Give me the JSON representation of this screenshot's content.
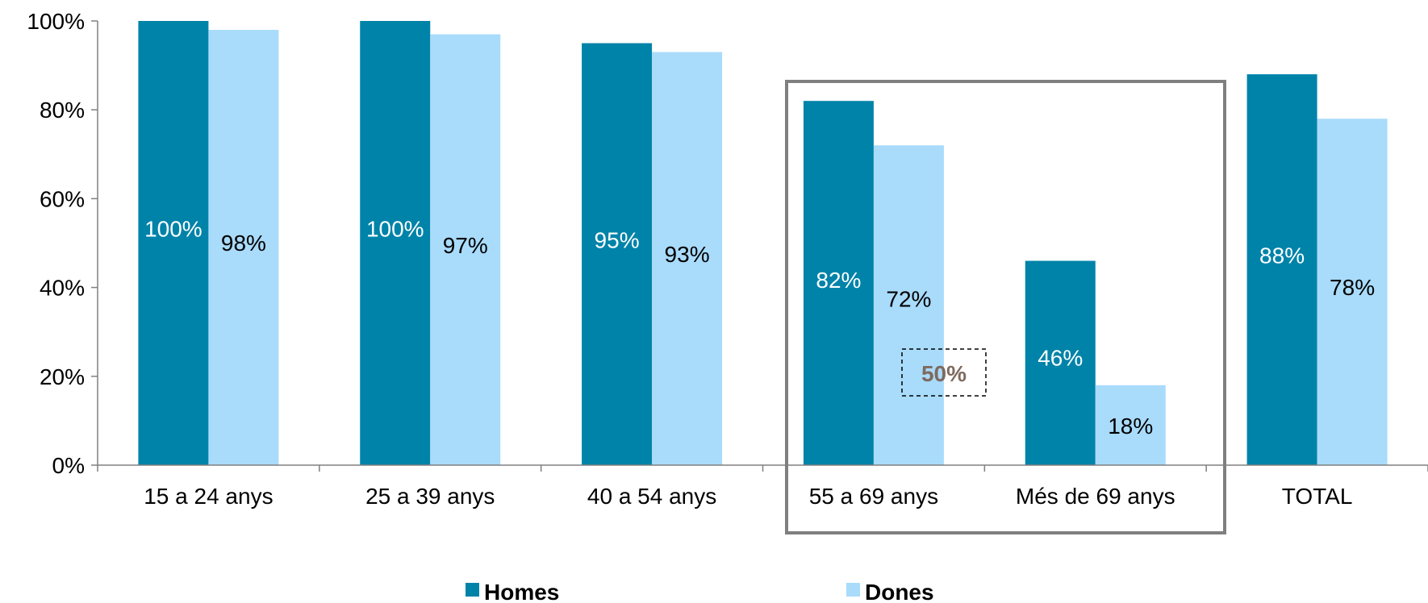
{
  "chart_data": {
    "type": "bar",
    "categories": [
      "15 a 24 anys",
      "25 a 39 anys",
      "40 a 54 anys",
      "55 a 69 anys",
      "Més de 69 anys",
      "TOTAL"
    ],
    "series": [
      {
        "name": "Homes",
        "values": [
          100,
          100,
          95,
          82,
          46,
          88
        ],
        "labels": [
          "100%",
          "100%",
          "95%",
          "82%",
          "46%",
          "88%"
        ]
      },
      {
        "name": "Dones",
        "values": [
          98,
          97,
          93,
          72,
          18,
          78
        ],
        "labels": [
          "98%",
          "97%",
          "93%",
          "72%",
          "18%",
          "78%"
        ]
      }
    ],
    "yticks": [
      "0%",
      "20%",
      "40%",
      "60%",
      "80%",
      "100%"
    ],
    "ylim": [
      0,
      100
    ],
    "grid": false,
    "legend_position": "bottom",
    "colors": {
      "Homes": "#0083A9",
      "Dones": "#A9DBFB",
      "highlight_box": "#7F7F7F",
      "callout_text": "#7F6A5E"
    },
    "annotations": [
      {
        "text": "50%",
        "note": "callout inside highlighted group (55 a 69 anys, Més de 69 anys)"
      }
    ],
    "highlight_categories": [
      "55 a 69 anys",
      "Més de 69 anys"
    ]
  }
}
